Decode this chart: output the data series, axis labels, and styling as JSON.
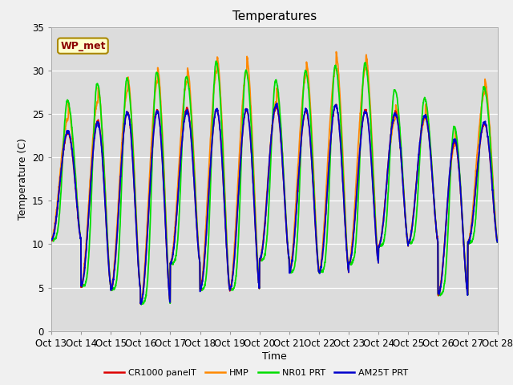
{
  "title": "Temperatures",
  "xlabel": "Time",
  "ylabel": "Temperature (C)",
  "ylim": [
    0,
    35
  ],
  "bg_color": "#dcdcdc",
  "fig_color": "#f0f0f0",
  "x_tick_labels": [
    "Oct 13",
    "Oct 14",
    "Oct 15",
    "Oct 16",
    "Oct 17",
    "Oct 18",
    "Oct 19",
    "Oct 20",
    "Oct 21",
    "Oct 22",
    "Oct 23",
    "Oct 24",
    "Oct 25",
    "Oct 26",
    "Oct 27",
    "Oct 28"
  ],
  "legend_entries": [
    "CR1000 panelT",
    "HMP",
    "NR01 PRT",
    "AM25T PRT"
  ],
  "legend_colors": [
    "#dd0000",
    "#ff8800",
    "#00dd00",
    "#0000cc"
  ],
  "annotation_text": "WP_met",
  "annotation_color": "#8b0000",
  "annotation_bg": "#ffffcc",
  "annotation_border": "#aa8800",
  "grid_color": "#ffffff",
  "n_days": 15,
  "n_per_day": 144,
  "day_mins_base": [
    10.5,
    5.2,
    4.8,
    3.2,
    7.8,
    4.8,
    4.8,
    8.2,
    6.8,
    6.8,
    7.8,
    9.8,
    10.2,
    4.2,
    10.2
  ],
  "day_maxs_blue": [
    23.0,
    24.0,
    25.2,
    25.3,
    25.3,
    25.5,
    25.5,
    26.0,
    25.5,
    26.0,
    25.3,
    25.0,
    24.8,
    22.0,
    24.0
  ],
  "day_maxs_green_extra": [
    3.5,
    4.5,
    3.8,
    4.5,
    4.0,
    5.5,
    4.5,
    2.8,
    4.5,
    4.5,
    5.5,
    2.8,
    2.0,
    1.5,
    4.0
  ],
  "day_maxs_orange_extra": [
    1.5,
    2.5,
    2.5,
    3.5,
    3.5,
    4.5,
    4.5,
    0.5,
    4.0,
    4.5,
    5.0,
    -0.5,
    -0.2,
    -0.5,
    3.5
  ]
}
